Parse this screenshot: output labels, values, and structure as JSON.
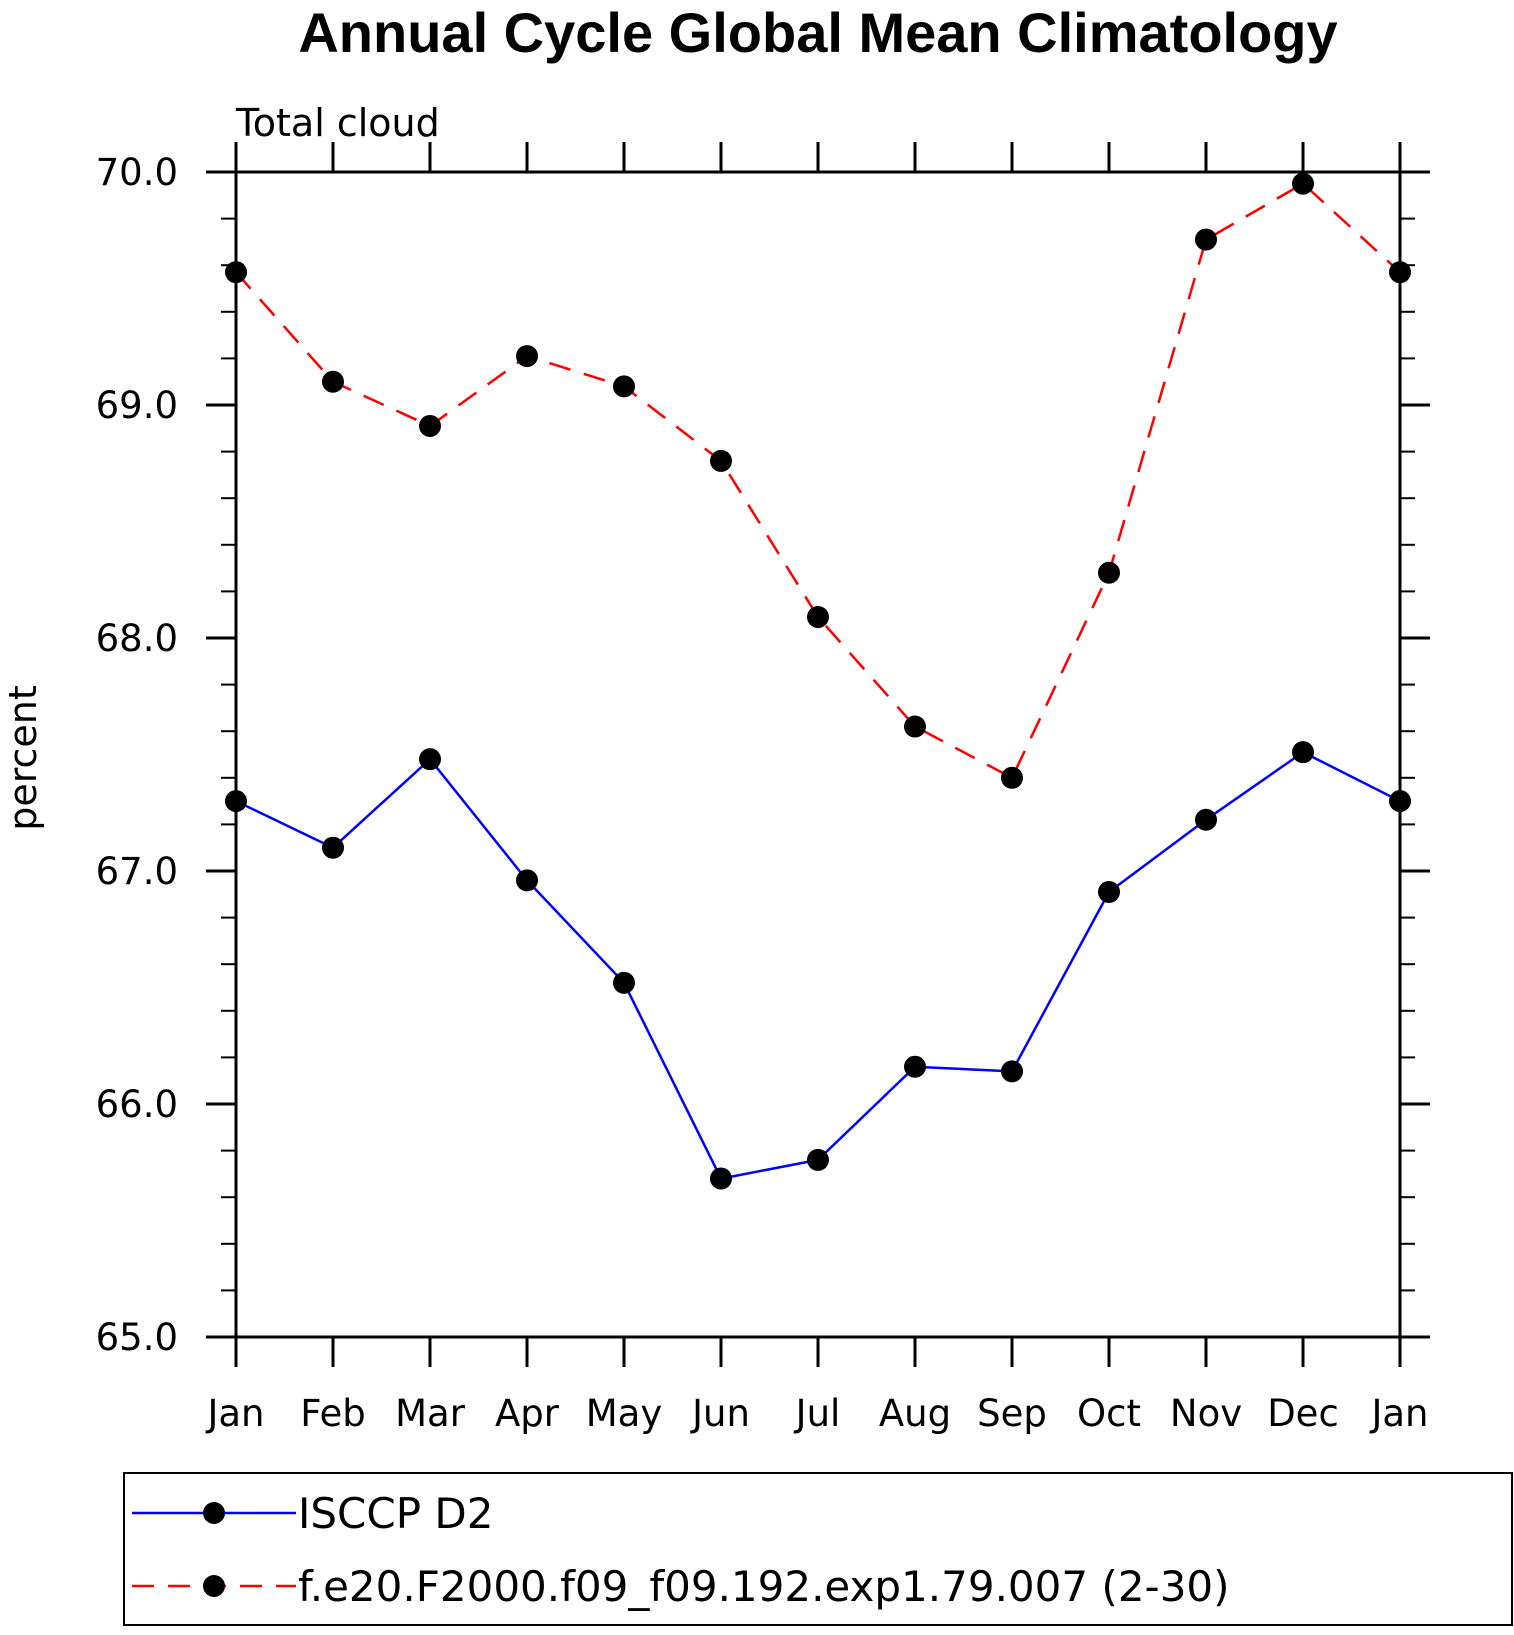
{
  "chart_data": {
    "type": "line",
    "title": "Annual Cycle Global Mean Climatology",
    "subtitle": "Total cloud",
    "xlabel": "",
    "ylabel": "percent",
    "categories": [
      "Jan",
      "Feb",
      "Mar",
      "Apr",
      "May",
      "Jun",
      "Jul",
      "Aug",
      "Sep",
      "Oct",
      "Nov",
      "Dec",
      "Jan"
    ],
    "ylim": [
      65.0,
      70.0
    ],
    "y_ticks": [
      "65.0",
      "66.0",
      "67.0",
      "68.0",
      "69.0",
      "70.0"
    ],
    "y_minor_step": 0.2,
    "grid": false,
    "legend_position": "bottom",
    "series": [
      {
        "name": "ISCCP D2",
        "color": "#0000ff",
        "line_style": "solid",
        "marker": "filled-circle",
        "values": [
          67.3,
          67.1,
          67.48,
          66.96,
          66.52,
          65.68,
          65.76,
          66.16,
          66.14,
          66.91,
          67.22,
          67.51,
          67.3
        ]
      },
      {
        "name": "f.e20.F2000.f09_f09.192.exp1.79.007 (2-30)",
        "color": "#ff0000",
        "line_style": "dashed",
        "marker": "filled-circle",
        "values": [
          69.57,
          69.1,
          68.91,
          69.21,
          69.08,
          68.76,
          68.09,
          67.62,
          67.4,
          68.28,
          69.71,
          69.95,
          69.57
        ]
      }
    ]
  }
}
